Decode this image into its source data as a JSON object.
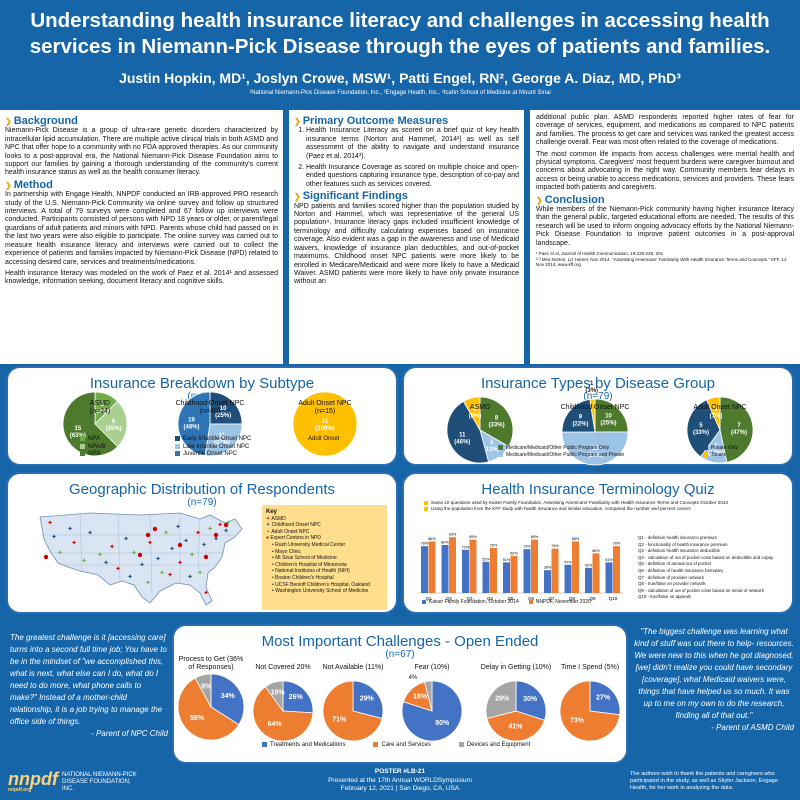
{
  "header": {
    "title": "Understanding health insurance literacy and challenges in accessing health services in Niemann-Pick Disease through the eyes of patients and families.",
    "authors": "Justin Hopkin, MD¹, Joslyn Crowe, MSW¹, Patti Engel, RN², George A. Diaz, MD, PhD³",
    "affiliations": "¹National Niemann-Pick Disease Foundation, Inc., ²Engage Health, Inc., ³Icahn School of Medicine at Mount Sinai"
  },
  "sections": {
    "background_h": "Background",
    "background": "Niemann-Pick Disease is a group of ultra-rare genetic disorders characterized by intracellular lipid accumulation. There are multiple active clinical trials in both ASMD and NPC that offer hope to a community with no FDA approved therapies. As our community looks to a post-approval era, the National Niemann-Pick Disease Foundation aims to support our families by gaining a thorough understanding of the community's current health insurance status as well as the health consumer literacy.",
    "method_h": "Method",
    "method1": "In partnership with Engage Health, NNPDF conducted an IRB-approved PRO research study of the U.S. Niemann-Pick Community via online survey and follow up structured interviews. A total of 79 surveys were completed and 67 follow up interviews were conducted. Participants consisted of persons with NPD 18 years or older, or parent/legal guardians of adult patients and minors with NPD. Parents whose child had passed on in the last two years were also eligible to participate. The online survey was carried out to measure health insurance literacy and interviews were carried out to collect the experience of patients and families impacted by Niemann-Pick Disease (NPD) related to accessing desired care, services and treatments/medications.",
    "method2": "Health insurance literacy was modeled on the work of Paez et al. 2014¹ and assessed knowledge, information seeking, document literacy and cognitive skills.",
    "pom_h": "Primary Outcome Measures",
    "pom1": "Health Insurance Literacy as scored on a brief quiz of key health insurance terms (Norton and Hammel, 2014²) as well as self assessment of the ability to navigate and understand insurance (Paez et al. 2014³).",
    "pom2": "Health Insurance Coverage as scored on multiple choice and open-ended questions capturing insurance type, description of co-pay and other features such as services covered.",
    "sig_h": "Significant Findings",
    "sig": "NPD patients and families scored higher than the population studied by Norton and Hammel, which was representative of the general US population⁴. Insurance literacy gaps included insufficient knowledge of terminology and difficulty calculating expenses based on insurance coverage. Also evident was a gap in the awareness and use of Medicaid waivers, knowledge of insurance plan deductibles, and out-of-pocket maximums. Childhood onset NPC patients were more likely to be enrolled in Medicare/Medicaid and were more likely to have a Medicaid Waiver. ASMD patients were more likely to have only private insurance without an",
    "right1": "additional public plan. ASMD respondents reported higher rates of fear for coverage of services, equipment, and medications as compared to NPC patients and families. The process to get care and services was ranked the greatest access challenge overall. Fear was most often related to the coverage of medications.",
    "right2": "The most common life impacts from access challenges were mental health and physical symptoms. Caregivers' most frequent burdens were caregiver burnout and concerns about advocating in the right way. Community members fear delays in access or being unable to access medications, services and providers. These fears impacted both patients and caregivers.",
    "conc_h": "Conclusion",
    "conc": "While members of the Niemann-Pick community having higher insurance literacy than the general public, targeted educational efforts are needed. The results of this research will be used to inform ongoing advocacy efforts by the National Niemann-Pick Disease Foundation to improve patient outcomes in a post-approval landscape.",
    "ref1": "¹ Paez et al, Journal of Health Communication, 19:225-239, 201",
    "ref2": "²·³ Mira Norton, Liz Hamel, Nov 2014. \"Assessing Americans' Familiarity With Health Insurance Terms and Concepts.\" KFF, 12 Nov 2014, www.kff.org"
  },
  "subtype": {
    "title": "Insurance Breakdown by Subtype",
    "n": "(n=79)",
    "pies": [
      {
        "label": "ASMD",
        "n": "(n=24)"
      },
      {
        "label": "Childhood Onset NPC",
        "n": "(n=40)"
      },
      {
        "label": "Adult Onset NPC",
        "n": "(n=15)"
      }
    ],
    "legend_asmd": [
      "NPA",
      "NPA/B",
      "NPB"
    ],
    "legend_child": [
      "Early Infantile Onset NPC",
      "Late Infantile Onset NPC",
      "Juvenile Onset NPC"
    ],
    "legend_adult": [
      "Adult Onset"
    ]
  },
  "types": {
    "title": "Insurance Types by Disease Group",
    "n": "(n=79)",
    "pies": [
      {
        "label": "ASMD"
      },
      {
        "label": "Childhood Onset NPC"
      },
      {
        "label": "Adult Onset NPC"
      }
    ],
    "legend": [
      "Medicare/Medicaid/Other Public Program Only",
      "Medicare/Medicaid/Other Public Program and Private",
      "Private Only",
      "Tricare"
    ]
  },
  "geo": {
    "title": "Geographic Distribution of Respondents",
    "n": "(n=79)",
    "key_title": "Key",
    "key": [
      "ASMD",
      "Childhood Onset NPC",
      "Adult Onset NPC",
      "Expert Centers in NPD"
    ],
    "centers": [
      "Rush University Medical Center",
      "Mayo Clinic",
      "Mt Sinai School of Medicine",
      "Children's Hospital of Minnesota",
      "National Institutes of Health (NIH)",
      "Boston Children's Hospital",
      "UCSF Benioff Children's Hospital, Oakland",
      "Washington University School of Medicine"
    ]
  },
  "quiz": {
    "title": "Health Insurance Terminology Quiz",
    "note1": "Same 10 questions used by Kaiser Family Foundation, Assessing Americans' Familiarity with Health Insurance Terms and Concepts October 2014",
    "note2": "Using the population from the KFF study with health insurance and similar education, compared the number and percent correct",
    "legend": [
      "Kaiser Family Foundation, October 2014",
      "NNPDF, November 2020"
    ],
    "qlegend": [
      "Q1 - definition health insurance premium",
      "Q2 - functionality of health insurance premium",
      "Q3 - definition health insurance deductible",
      "Q4 - calculation of out of pocket costs based on deductible and copay",
      "Q5 - definition of annual out of pocket",
      "Q6 - definition of health insurance formulary",
      "Q7 - definition of provider network",
      "Q8 - true/false on provider network",
      "Q9 - calculation of out of pocket costs based on in/out of network",
      "Q10 - true/false on appeals"
    ]
  },
  "challenges": {
    "title": "Most Important Challenges - Open Ended",
    "n": "(n=67)",
    "pies": [
      {
        "label": "Process to Get (36% of Responses)"
      },
      {
        "label": "Not Covered 20%"
      },
      {
        "label": "Not Available (11%)"
      },
      {
        "label": "Fear (10%)"
      },
      {
        "label": "Delay in Getting (10%)"
      },
      {
        "label": "Time I Spend (5%)"
      }
    ],
    "legend": [
      "Treatments and Medications",
      "Care and Services",
      "Devices and Equipment"
    ],
    "extra_label": "4%"
  },
  "quotes": {
    "left": "The greatest challenge is it [accessing care] turns into a second full time job; You have to be in the mindset of \"we accomplished this, what is next, what else can I do, what do I need to do more, what phone calls to make?\" Instead of a mother-child relationship, it is a job trying to manage the office side of things.",
    "left_attr": "- Parent of NPC Child",
    "right": "\"The biggest challenge was learning what kind of stuff was out there to help- resources. We were new to this when he got diagnosed, [we] didn't realize you could have secondary [coverage], what Medicaid waivers were, things that have helped us so much. It was up to me on my own to do the research, finding all of that out.\"",
    "right_attr": "- Parent of ASMD Child"
  },
  "footer": {
    "logo": "nnpdf",
    "logo_sub": "nnpdf.org",
    "org": "NATIONAL NIEMANN-PICK DISEASE FOUNDATION, INC.",
    "poster": "POSTER #LB-21",
    "presented": "Presented at the 17th Annual WORLDSymposium",
    "date": "February 12, 2021 | San Diego, CA, USA",
    "ack": "The authors wish to thank the patients and caregivers who participated in the study, as well as Skyler Jackson, Engage Health, for her work in analyzing the data."
  },
  "colors": {
    "dkgreen": "#4e7a2e",
    "green": "#70ad47",
    "ltgreen": "#a9d08e",
    "navy": "#1f4e79",
    "blue": "#2e75b6",
    "ltblue": "#9dc3e6",
    "yellow": "#ffc000",
    "orange": "#ed7d31",
    "gray": "#a5a5a5",
    "qblue": "#4472c4"
  },
  "chart_data": [
    {
      "type": "pie",
      "title": "ASMD",
      "slices": [
        {
          "label": "NPA",
          "value": 3,
          "pct": "12%"
        },
        {
          "label": "NPA/B",
          "value": 6,
          "pct": "25%"
        },
        {
          "label": "NPB",
          "value": 15,
          "pct": "63%"
        }
      ]
    },
    {
      "type": "pie",
      "title": "Childhood Onset NPC",
      "slices": [
        {
          "label": "Early Infantile Onset NPC",
          "value": 10,
          "pct": "25%"
        },
        {
          "label": "Late Infantile Onset NPC",
          "value": 11,
          "pct": "27%"
        },
        {
          "label": "Juvenile Onset NPC",
          "value": 19,
          "pct": "48%"
        }
      ]
    },
    {
      "type": "pie",
      "title": "Adult Onset NPC",
      "slices": [
        {
          "label": "Adult Onset",
          "value": 15,
          "pct": "100%"
        }
      ]
    },
    {
      "type": "pie",
      "title": "ASMD",
      "slices": [
        {
          "label": "Medicare/Medicaid/Other Public Program Only",
          "value": 8,
          "pct": "33%"
        },
        {
          "label": "Medicare/Medicaid/Other Public Program and Private",
          "value": 3,
          "pct": "13%"
        },
        {
          "label": "Private Only",
          "value": 11,
          "pct": "46%"
        },
        {
          "label": "Tricare",
          "value": 2,
          "pct": "8%"
        }
      ]
    },
    {
      "type": "pie",
      "title": "Childhood Onset NPC",
      "slices": [
        {
          "label": "Medicare/Medicaid/Other Public Program Only",
          "value": 10,
          "pct": "25%"
        },
        {
          "label": "Medicare/Medicaid/Other Public Program and Private",
          "value": 20,
          "pct": "50%"
        },
        {
          "label": "Private Only",
          "value": 9,
          "pct": "22%"
        },
        {
          "label": "Tricare",
          "value": 1,
          "pct": "3%"
        }
      ]
    },
    {
      "type": "pie",
      "title": "Adult Onset NPC",
      "slices": [
        {
          "label": "Medicare/Medicaid/Other Public Program Only",
          "value": 7,
          "pct": "47%"
        },
        {
          "label": "Medicare/Medicaid/Other Public Program and Private",
          "value": 2,
          "pct": "13%"
        },
        {
          "label": "Private Only",
          "value": 5,
          "pct": "33%"
        },
        {
          "label": "Tricare",
          "value": 1,
          "pct": "7%"
        }
      ]
    },
    {
      "type": "bar",
      "title": "Health Insurance Terminology Quiz",
      "categories": [
        "Q1",
        "Q2",
        "Q3",
        "Q4",
        "Q5",
        "Q6",
        "Q7",
        "Q8",
        "Q9",
        "Q10"
      ],
      "series": [
        {
          "name": "Kaiser Family Foundation, October 2014",
          "values": [
            78,
            80,
            72,
            52,
            51,
            73,
            38,
            47,
            42,
            51
          ]
        },
        {
          "name": "NNPDF, November 2020",
          "values": [
            86,
            93,
            89,
            75,
            62,
            89,
            74,
            86,
            66,
            78
          ]
        }
      ],
      "ylim": [
        0,
        100
      ]
    },
    {
      "type": "pie",
      "title": "Process to Get (36% of Responses)",
      "slices": [
        {
          "label": "Treatments and Medications",
          "value": 34,
          "pct": "34%"
        },
        {
          "label": "Care and Services",
          "value": 58,
          "pct": "58%"
        },
        {
          "label": "Devices and Equipment",
          "value": 8,
          "pct": "8%"
        }
      ]
    },
    {
      "type": "pie",
      "title": "Not Covered 20%",
      "slices": [
        {
          "label": "Treatments and Medications",
          "value": 26,
          "pct": "26%"
        },
        {
          "label": "Care and Services",
          "value": 64,
          "pct": "64%"
        },
        {
          "label": "Devices and Equipment",
          "value": 10,
          "pct": "10%"
        }
      ]
    },
    {
      "type": "pie",
      "title": "Not Available (11%)",
      "slices": [
        {
          "label": "Treatments and Medications",
          "value": 29,
          "pct": "29%"
        },
        {
          "label": "Care and Services",
          "value": 71,
          "pct": "71%"
        }
      ]
    },
    {
      "type": "pie",
      "title": "Fear (10%)",
      "slices": [
        {
          "label": "Treatments and Medications",
          "value": 80,
          "pct": "80%"
        },
        {
          "label": "Care and Services",
          "value": 16,
          "pct": "16%"
        },
        {
          "label": "Devices and Equipment",
          "value": 4,
          "pct": "4%"
        }
      ]
    },
    {
      "type": "pie",
      "title": "Delay in Getting (10%)",
      "slices": [
        {
          "label": "Treatments and Medications",
          "value": 30,
          "pct": "30%"
        },
        {
          "label": "Care and Services",
          "value": 41,
          "pct": "41%"
        },
        {
          "label": "Devices and Equipment",
          "value": 29,
          "pct": "29%"
        }
      ]
    },
    {
      "type": "pie",
      "title": "Time I Spend (5%)",
      "slices": [
        {
          "label": "Treatments and Medications",
          "value": 27,
          "pct": "27%"
        },
        {
          "label": "Care and Services",
          "value": 73,
          "pct": "73%"
        }
      ]
    }
  ]
}
